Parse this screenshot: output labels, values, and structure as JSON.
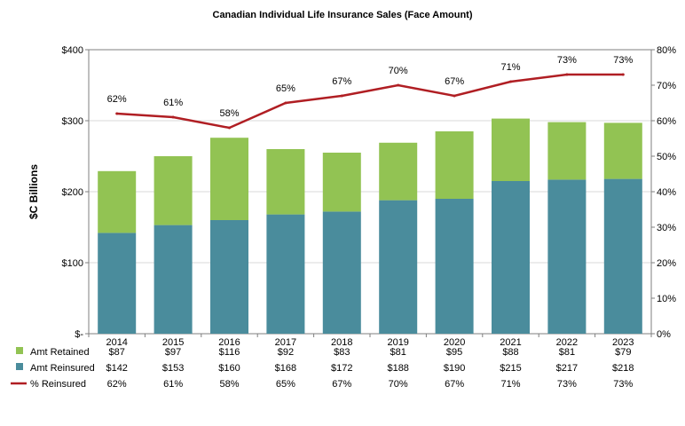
{
  "chart_data": {
    "type": "bar",
    "title": "Canadian Individual Life Insurance Sales (Face Amount)",
    "ylabel": "$C Billions",
    "ylim": [
      0,
      400
    ],
    "y2lim": [
      0,
      80
    ],
    "yticks": [
      "$-",
      "$100",
      "$200",
      "$300",
      "$400"
    ],
    "y2ticks": [
      "0%",
      "10%",
      "20%",
      "30%",
      "40%",
      "50%",
      "60%",
      "70%",
      "80%"
    ],
    "categories": [
      "2014",
      "2015",
      "2016",
      "2017",
      "2018",
      "2019",
      "2020",
      "2021",
      "2022",
      "2023"
    ],
    "stacked": true,
    "gridlines": true,
    "series": [
      {
        "name": "Amt Reinsured",
        "type": "bar",
        "axis": "left",
        "color": "#4a8c9c",
        "values": [
          142,
          153,
          160,
          168,
          172,
          188,
          190,
          215,
          217,
          218
        ],
        "labels": [
          "$142",
          "$153",
          "$160",
          "$168",
          "$172",
          "$188",
          "$190",
          "$215",
          "$217",
          "$218"
        ]
      },
      {
        "name": "Amt Retained",
        "type": "bar",
        "axis": "left",
        "color": "#92c353",
        "values": [
          87,
          97,
          116,
          92,
          83,
          81,
          95,
          88,
          81,
          79
        ],
        "labels": [
          "$87",
          "$97",
          "$116",
          "$92",
          "$83",
          "$81",
          "$95",
          "$88",
          "$81",
          "$79"
        ]
      },
      {
        "name": "% Reinsured",
        "type": "line",
        "axis": "right",
        "color": "#b01e23",
        "values": [
          62,
          61,
          58,
          65,
          67,
          70,
          67,
          71,
          73,
          73
        ],
        "labels": [
          "62%",
          "61%",
          "58%",
          "65%",
          "67%",
          "70%",
          "67%",
          "71%",
          "73%",
          "73%"
        ]
      }
    ],
    "table_rows": [
      "Amt Retained",
      "Amt Reinsured",
      "% Reinsured"
    ]
  }
}
